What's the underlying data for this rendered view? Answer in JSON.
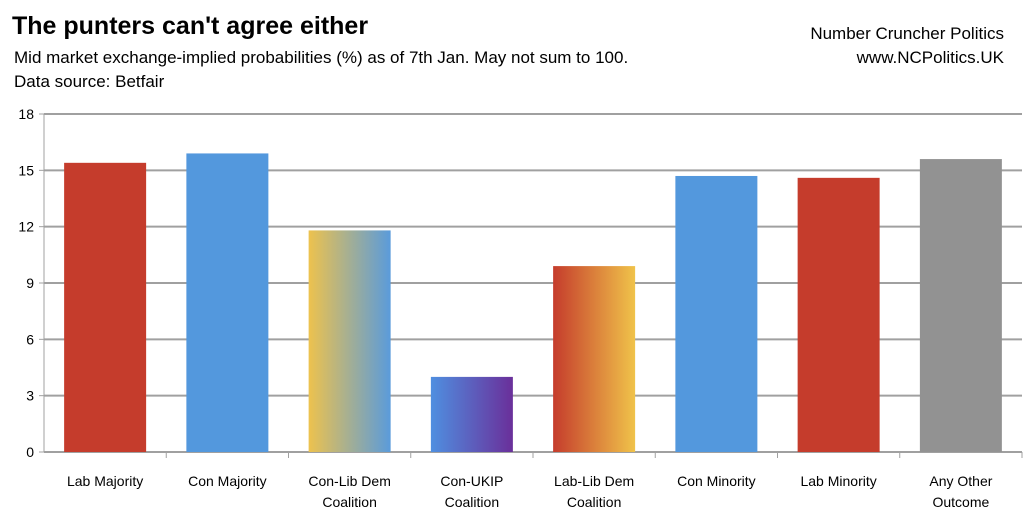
{
  "header": {
    "title": "The punters can't agree either",
    "subtitle": "Mid market exchange-implied probabilities (%) as of 7th Jan. May not sum to 100.",
    "source": "Data source: Betfair",
    "brand_name": "Number Cruncher Politics",
    "brand_url": "www.NCPolitics.UK"
  },
  "chart_data": {
    "type": "bar",
    "title": "The punters can't agree either",
    "categories": [
      [
        "Lab Majority"
      ],
      [
        "Con Majority"
      ],
      [
        "Con-Lib Dem",
        "Coalition"
      ],
      [
        "Con-UKIP",
        "Coalition"
      ],
      [
        "Lab-Lib Dem",
        "Coalition"
      ],
      [
        "Con Minority"
      ],
      [
        "Lab Minority"
      ],
      [
        "Any Other",
        "Outcome"
      ]
    ],
    "values": [
      15.4,
      15.9,
      11.8,
      4.0,
      9.9,
      14.7,
      14.6,
      15.6
    ],
    "colors": [
      [
        "#c53c2c"
      ],
      [
        "#5398dd"
      ],
      [
        "#edc24e",
        "#5a9bdb"
      ],
      [
        "#4f8fe0",
        "#6a2f9a"
      ],
      [
        "#c53c2c",
        "#f0c34a"
      ],
      [
        "#5398dd"
      ],
      [
        "#c53c2c"
      ],
      [
        "#929292"
      ]
    ],
    "ylim": [
      0,
      18
    ],
    "yticks": [
      "0",
      "3",
      "6",
      "9",
      "12",
      "15",
      "18"
    ],
    "grid": true,
    "legend": "none"
  }
}
